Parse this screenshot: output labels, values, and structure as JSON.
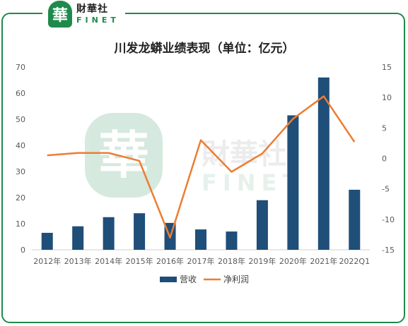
{
  "brand": {
    "badge_char": "華",
    "name_cn": "財華社",
    "name_en": "FINET",
    "color": "#1f8a4c"
  },
  "chart_data": {
    "type": "bar",
    "title": "川发龙蟒业绩表现（单位：亿元）",
    "categories": [
      "2012年",
      "2013年",
      "2014年",
      "2015年",
      "2016年",
      "2017年",
      "2018年",
      "2019年",
      "2020年",
      "2021年",
      "2022Q1"
    ],
    "series": [
      {
        "name": "营收",
        "type": "bar",
        "axis": "left",
        "color": "#1f4e79",
        "values": [
          6.5,
          9,
          12.5,
          14,
          10.3,
          7.8,
          7,
          19,
          51.5,
          66,
          23
        ]
      },
      {
        "name": "净利润",
        "type": "line",
        "axis": "right",
        "color": "#ed7d31",
        "values": [
          0.5,
          0.9,
          0.9,
          -0.4,
          -13,
          3,
          -2.2,
          0.8,
          6.5,
          10.2,
          2.7
        ]
      }
    ],
    "y_left": {
      "min": 0,
      "max": 70,
      "ticks": [
        0,
        10,
        20,
        30,
        40,
        50,
        60,
        70
      ]
    },
    "y_right": {
      "min": -15,
      "max": 15,
      "ticks": [
        -15,
        -10,
        -5,
        0,
        5,
        10,
        15
      ]
    },
    "legend_position": "bottom",
    "grid": false,
    "watermark": {
      "char": "華",
      "cn": "財華社",
      "en": "FINET"
    }
  }
}
